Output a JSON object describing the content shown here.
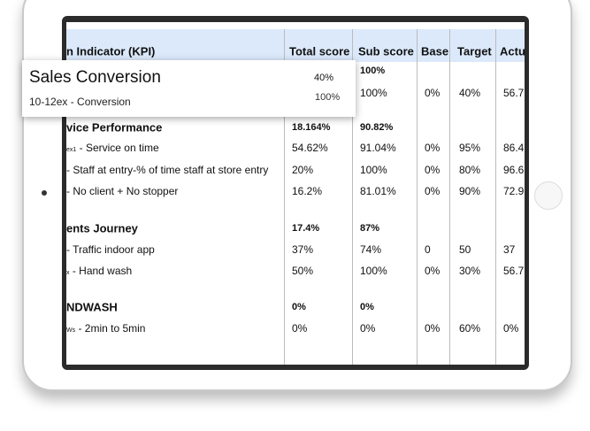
{
  "table": {
    "columns": [
      "n Indicator (KPI)",
      "Total score",
      "Sub score",
      "Base",
      "Target",
      "Actu"
    ],
    "rows": [
      {
        "sub": "100%",
        "section": true
      },
      {
        "sub": "100%",
        "base": "0%",
        "target": "40%",
        "actual": "56.7"
      },
      {
        "kpi": "vice Performance",
        "total": "18.164%",
        "sub": "90.82%",
        "section": true
      },
      {
        "code": "ex1",
        "kpi": " - Service on time",
        "total": "54.62%",
        "sub": "91.04%",
        "base": "0%",
        "target": "95%",
        "actual": "86.4"
      },
      {
        "kpi": "- Staff at entry-% of time staff at store entry",
        "total": "20%",
        "sub": "100%",
        "base": "0%",
        "target": "80%",
        "actual": "96.6"
      },
      {
        "kpi": "- No client + No stopper",
        "total": "16.2%",
        "sub": "81.01%",
        "base": "0%",
        "target": "90%",
        "actual": "72.9"
      },
      {
        "kpi": "ents Journey",
        "total": "17.4%",
        "sub": "87%",
        "section": true
      },
      {
        "kpi": "- Traffic indoor app",
        "total": "37%",
        "sub": "74%",
        "base": "0",
        "target": "50",
        "actual": "37"
      },
      {
        "code": "x",
        "kpi": " - Hand wash",
        "total": "50%",
        "sub": "100%",
        "base": "0%",
        "target": "30%",
        "actual": "56.7"
      },
      {
        "kpi": "NDWASH",
        "total": "0%",
        "sub": "0%",
        "section": true
      },
      {
        "code": "Ws",
        "kpi": " - 2min to 5min",
        "total": "0%",
        "sub": "0%",
        "base": "0%",
        "target": "60%",
        "actual": "0%"
      }
    ]
  },
  "overlay": {
    "title": "Sales Conversion",
    "subtitle": "10-12ex - Conversion",
    "values": [
      "40%",
      "100%"
    ]
  }
}
